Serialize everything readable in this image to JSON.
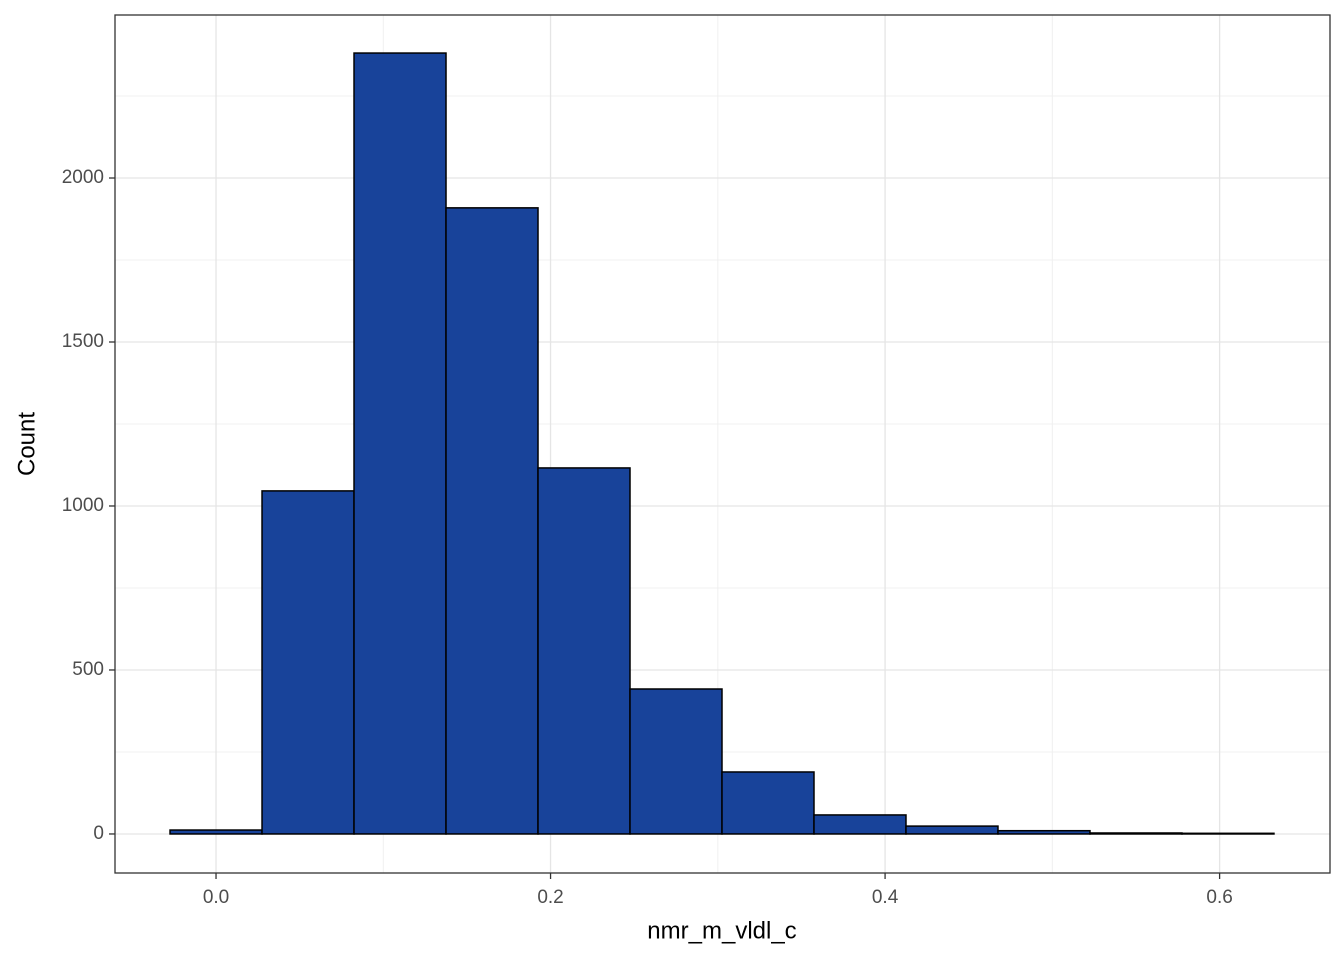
{
  "chart_data": {
    "type": "histogram",
    "x_label": "nmr_m_vldl_c",
    "y_label": "Count",
    "bins": [
      -0.0275,
      0.0275,
      0.0825,
      0.1375,
      0.1925,
      0.2475,
      0.3025,
      0.3575,
      0.4125,
      0.4675,
      0.5225,
      0.5775,
      0.6325
    ],
    "values": [
      12,
      1046,
      2381,
      1909,
      1116,
      442,
      189,
      58,
      24,
      10,
      3,
      2
    ],
    "color": "#18439a",
    "edge_color": "#000000",
    "xlim": [
      -0.0604,
      0.666
    ],
    "ylim": [
      -119,
      2497
    ],
    "xticks": [
      {
        "value": 0,
        "label": "0.0"
      },
      0.2,
      0.4,
      0.6
    ],
    "yticks": [
      0,
      500,
      1000,
      1500,
      2000
    ],
    "grid": true
  }
}
